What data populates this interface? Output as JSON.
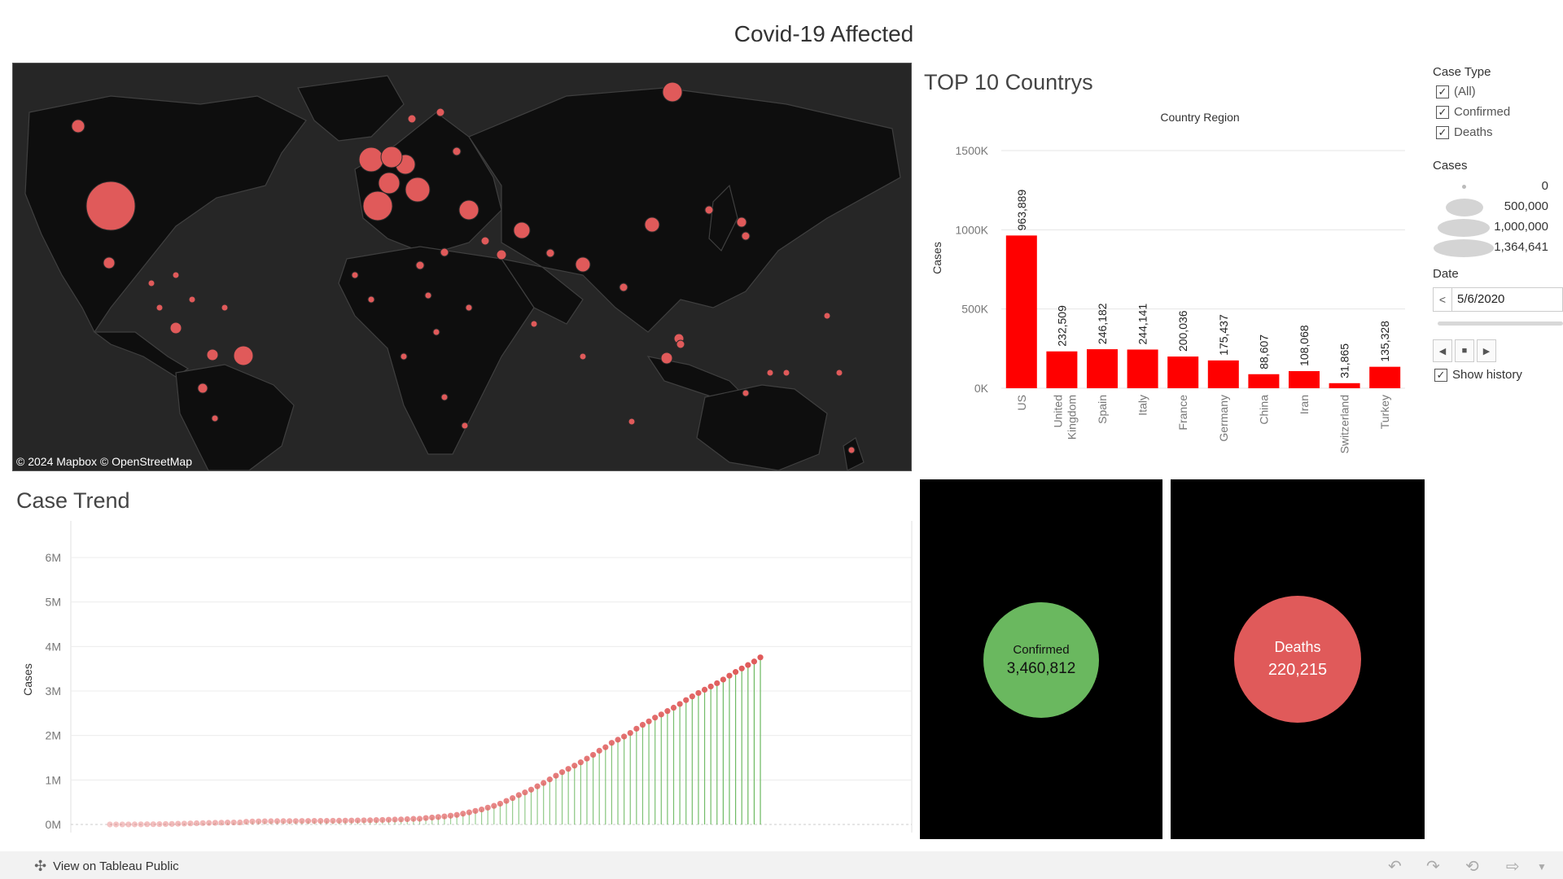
{
  "dashboard": {
    "title": "Covid-19 Affected"
  },
  "map": {
    "credit": "© 2024 Mapbox  © OpenStreetMap",
    "bubble_color": "#e05a5a"
  },
  "bar_chart": {
    "title": "TOP 10 Countrys"
  },
  "trend_chart": {
    "title": "Case Trend"
  },
  "chart_data": [
    {
      "type": "bar",
      "header": "Country Region",
      "ylabel": "Cases",
      "categories": [
        "US",
        "United Kingdom",
        "Spain",
        "Italy",
        "France",
        "Germany",
        "China",
        "Iran",
        "Switzerland",
        "Turkey"
      ],
      "values": [
        963889,
        232509,
        246182,
        244141,
        200036,
        175437,
        88607,
        108068,
        31865,
        135328
      ],
      "value_labels": [
        "963,889",
        "232,509",
        "246,182",
        "244,141",
        "200,036",
        "175,437",
        "88,607",
        "108,068",
        "31,865",
        "135,328"
      ],
      "yticks": [
        "0K",
        "500K",
        "1000K",
        "1500K"
      ],
      "ylim": [
        0,
        1500000
      ],
      "color": "#ff0000",
      "grid": true
    },
    {
      "type": "line",
      "ylabel": "Cases",
      "yticks": [
        "0M",
        "1M",
        "2M",
        "3M",
        "4M",
        "5M",
        "6M"
      ],
      "ylim": [
        0,
        6000000
      ],
      "x_unit": "day",
      "values": [
        555,
        654,
        941,
        1434,
        2118,
        2927,
        5578,
        6166,
        8234,
        9927,
        12038,
        16787,
        19881,
        23892,
        27635,
        30817,
        34391,
        37120,
        40150,
        42762,
        44802,
        45221,
        60368,
        66885,
        69030,
        71224,
        73258,
        75136,
        75639,
        76197,
        76819,
        78572,
        78958,
        79561,
        80406,
        81388,
        82746,
        84112,
        86011,
        88369,
        90306,
        92840,
        95120,
        97886,
        101801,
        105847,
        109821,
        113590,
        118620,
        125875,
        128352,
        145205,
        156101,
        167454,
        181574,
        197102,
        214821,
        242570,
        272208,
        304507,
        336953,
        378231,
        418041,
        467653,
        529591,
        593291,
        660706,
        720117,
        782365,
        857487,
        932605,
        1013157,
        1095917,
        1176060,
        1249754,
        1321481,
        1396476,
        1480202,
        1565278,
        1657526,
        1735650,
        1834721,
        1904838,
        1976191,
        2056054,
        2152437,
        2240190,
        2317759,
        2401378,
        2472259,
        2549123,
        2624368,
        2708885,
        2795714,
        2878196,
        2955033,
        3029225,
        3101445,
        3174549,
        3256853,
        3343777,
        3427584,
        3506729,
        3583055,
        3662691,
        3755341
      ],
      "stem_color": "#6ab85f",
      "marker_color": "#e05a5a",
      "grid": true
    }
  ],
  "kpis": {
    "confirmed_label": "Confirmed",
    "confirmed_value": "3,460,812",
    "deaths_label": "Deaths",
    "deaths_value": "220,215",
    "confirmed_color": "#6ab85f",
    "deaths_color": "#e05a5a"
  },
  "filters": {
    "case_type_label": "Case Type",
    "options": [
      {
        "label": "(All)",
        "checked": true
      },
      {
        "label": "Confirmed",
        "checked": true
      },
      {
        "label": "Deaths",
        "checked": true
      }
    ]
  },
  "size_legend": {
    "label": "Cases",
    "entries": [
      "0",
      "500,000",
      "1,000,000",
      "1,364,641"
    ]
  },
  "date_filter": {
    "label": "Date",
    "value": "5/6/2020",
    "show_history_label": "Show history",
    "show_history_checked": true
  },
  "footer": {
    "link_text": "View on Tableau Public"
  }
}
